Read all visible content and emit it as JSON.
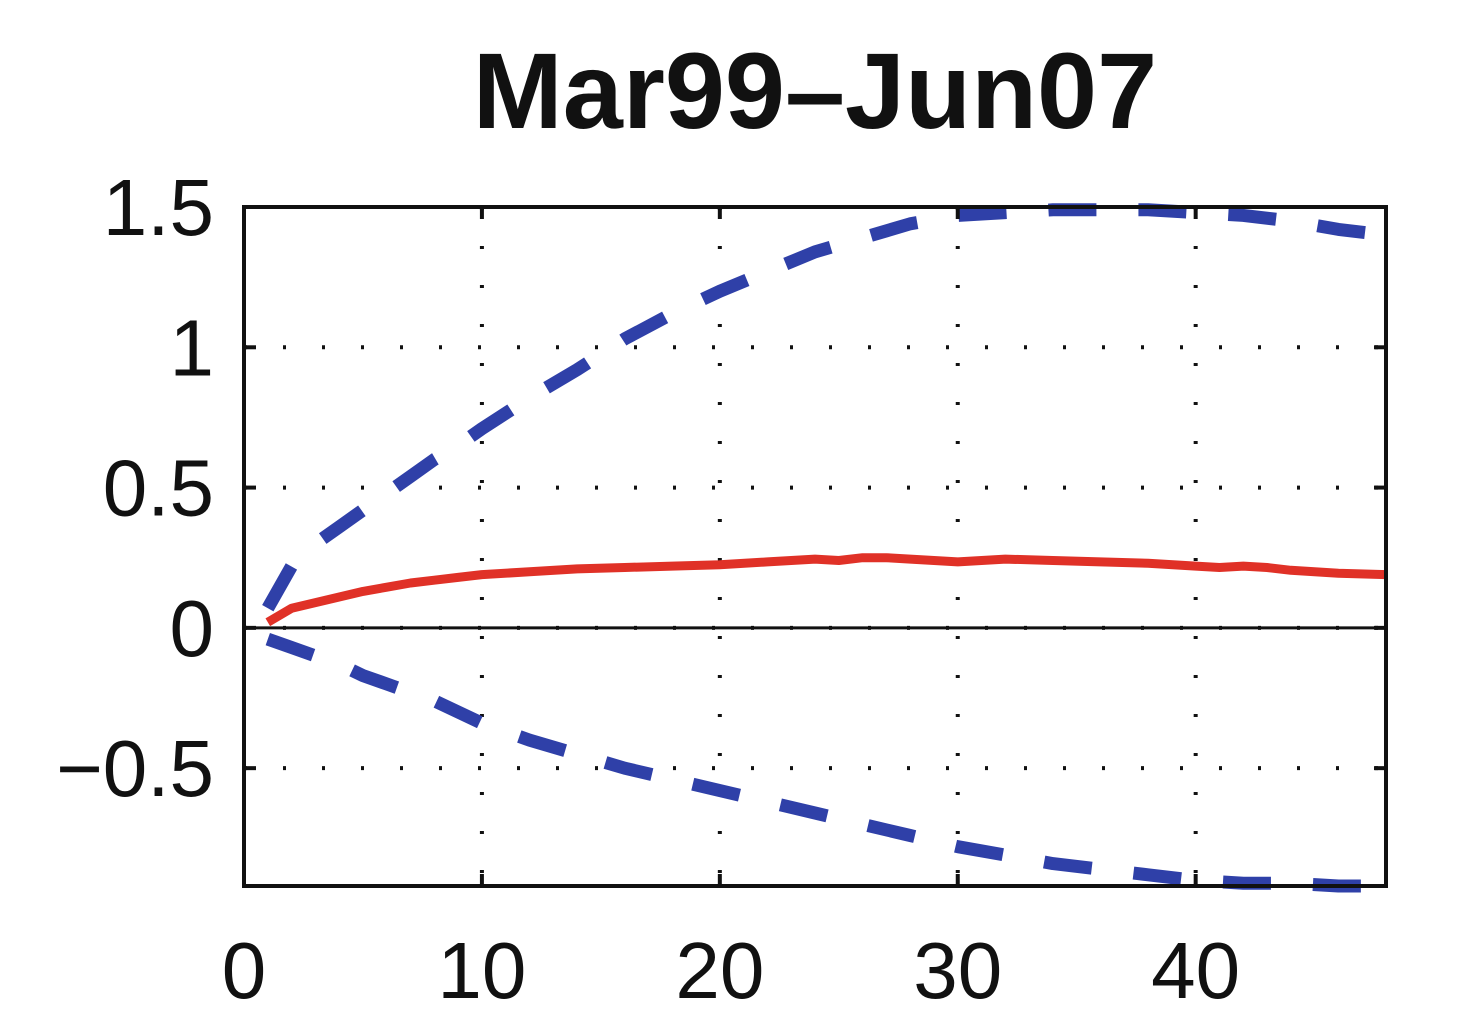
{
  "chart_data": {
    "type": "line",
    "title": "Mar99–Jun07",
    "xlabel": "",
    "ylabel": "",
    "xlim": [
      0,
      48
    ],
    "ylim": [
      -0.92,
      1.5
    ],
    "xticks": [
      0,
      10,
      20,
      30,
      40
    ],
    "xtick_labels": [
      "0",
      "10",
      "20",
      "30",
      "40"
    ],
    "yticks": [
      -0.5,
      0,
      0.5,
      1,
      1.5
    ],
    "ytick_labels": [
      "−0.5",
      "0",
      "0.5",
      "1",
      "1.5"
    ],
    "grid": "dotted",
    "zero_line": true,
    "colors": {
      "estimate": "#e03127",
      "bands": "#2f40a8",
      "axes": "#111111"
    },
    "series": [
      {
        "role": "upper-band",
        "style": "dashed",
        "x": [
          1,
          2,
          3,
          4,
          5,
          6,
          7,
          8,
          9,
          10,
          12,
          14,
          16,
          18,
          20,
          22,
          24,
          26,
          28,
          30,
          32,
          34,
          36,
          38,
          40,
          42,
          44,
          46,
          48
        ],
        "y": [
          0.07,
          0.22,
          0.3,
          0.36,
          0.42,
          0.48,
          0.54,
          0.6,
          0.65,
          0.71,
          0.82,
          0.92,
          1.03,
          1.12,
          1.2,
          1.27,
          1.34,
          1.39,
          1.44,
          1.47,
          1.48,
          1.49,
          1.49,
          1.49,
          1.48,
          1.47,
          1.45,
          1.42,
          1.4
        ]
      },
      {
        "role": "estimate",
        "style": "solid",
        "x": [
          1,
          2,
          3,
          4,
          5,
          6,
          7,
          8,
          9,
          10,
          12,
          14,
          16,
          18,
          20,
          22,
          24,
          25,
          26,
          27,
          28,
          30,
          32,
          34,
          36,
          38,
          40,
          41,
          42,
          43,
          44,
          46,
          48
        ],
        "y": [
          0.02,
          0.07,
          0.09,
          0.11,
          0.13,
          0.145,
          0.16,
          0.17,
          0.18,
          0.19,
          0.2,
          0.21,
          0.215,
          0.22,
          0.225,
          0.235,
          0.245,
          0.24,
          0.25,
          0.25,
          0.245,
          0.235,
          0.245,
          0.24,
          0.235,
          0.23,
          0.22,
          0.215,
          0.22,
          0.215,
          0.205,
          0.195,
          0.19
        ]
      },
      {
        "role": "lower-band",
        "style": "dashed",
        "x": [
          1,
          2,
          3,
          4,
          5,
          6,
          7,
          8,
          9,
          10,
          12,
          14,
          16,
          18,
          20,
          22,
          24,
          26,
          28,
          30,
          32,
          34,
          36,
          38,
          40,
          42,
          44,
          46,
          48
        ],
        "y": [
          -0.04,
          -0.07,
          -0.1,
          -0.13,
          -0.17,
          -0.2,
          -0.23,
          -0.26,
          -0.3,
          -0.34,
          -0.4,
          -0.45,
          -0.5,
          -0.54,
          -0.58,
          -0.62,
          -0.66,
          -0.7,
          -0.74,
          -0.78,
          -0.81,
          -0.84,
          -0.86,
          -0.88,
          -0.9,
          -0.91,
          -0.91,
          -0.92,
          -0.92
        ]
      }
    ]
  }
}
